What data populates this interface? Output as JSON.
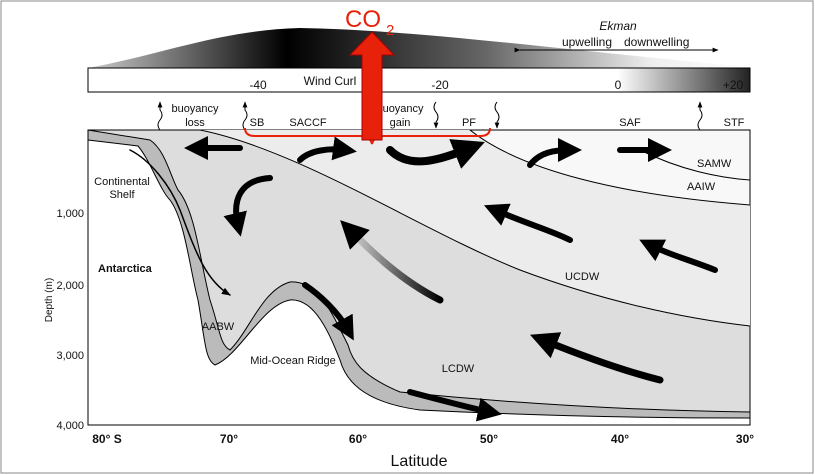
{
  "co2": {
    "main": "CO",
    "sub": "2"
  },
  "ekman": {
    "title": "Ekman",
    "left": "upwelling",
    "right": "downwelling"
  },
  "wind_curl": {
    "label": "Wind Curl",
    "ticks": [
      "-40",
      "-20",
      "0",
      "+20"
    ]
  },
  "surface": {
    "buoyancy_loss": [
      "buoyancy",
      "loss"
    ],
    "buoyancy_gain": [
      "buoyancy",
      "gain"
    ],
    "fronts": [
      "SB",
      "SACCF",
      "PF",
      "SAF",
      "STF"
    ]
  },
  "water_masses": {
    "samw": "SAMW",
    "aaiw": "AAIW",
    "ucdw": "UCDW",
    "lcdw": "LCDW",
    "aabw": "AABW"
  },
  "features": {
    "shelf": [
      "Continental",
      "Shelf"
    ],
    "antarctica": "Antarctica",
    "ridge": "Mid-Ocean Ridge"
  },
  "axes": {
    "y_title": "Depth (m)",
    "y_ticks": [
      "1,000",
      "2,000",
      "3,000",
      "4,000"
    ],
    "x_ticks": [
      "80° S",
      "70°",
      "60°",
      "50°",
      "40°",
      "30°"
    ],
    "x_title": "Latitude"
  }
}
